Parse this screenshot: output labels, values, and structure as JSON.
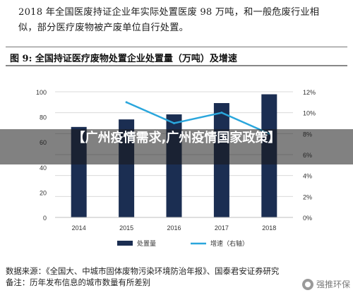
{
  "intro": {
    "line1": "2018 年全国医废持证企业年实际处置医废 98 万吨，和一般危废行业相",
    "line2": "似，部分医疗废物被产废单位自行处置。"
  },
  "figure": {
    "title": "图 9:  全国持证医疗废物处置企业处置量（万吨）及增速"
  },
  "overlay": {
    "text": "【广州疫情需求,广州疫情国家政策】"
  },
  "source": {
    "line1": "数据来源：《全国大、中城市固体废物污染环境防治年报》、国泰君安证券研究",
    "line2": "备注：历年发布信息的城市数量有所差别"
  },
  "watermark": {
    "text": "强推环保",
    "icon": "wechat-logo"
  },
  "colors": {
    "bar": "#1b2e52",
    "line": "#2aa6dc",
    "grid": "#d9d9d9",
    "overlay": "#333333"
  },
  "chart_data": {
    "type": "bar",
    "categories": [
      "2014",
      "2015",
      "2016",
      "2017",
      "2018"
    ],
    "series": [
      {
        "name": "处置量",
        "type": "bar",
        "axis": "left",
        "values": [
          72,
          78,
          82,
          91,
          98
        ]
      },
      {
        "name": "增速（右轴）",
        "type": "line",
        "axis": "right",
        "values": [
          null,
          0.11,
          0.09,
          0.1,
          0.08
        ]
      }
    ],
    "y_left": {
      "min": 0,
      "max": 100,
      "ticks": [
        0,
        20,
        40,
        60,
        80,
        100
      ],
      "tick_labels": [
        "0",
        "20",
        "40",
        "60",
        "80",
        "100"
      ]
    },
    "y_right": {
      "min": 0,
      "max": 0.12,
      "ticks": [
        0,
        0.02,
        0.04,
        0.06,
        0.08,
        0.1,
        0.12
      ],
      "tick_labels": [
        "0%",
        "2%",
        "4%",
        "6%",
        "8%",
        "10%",
        "12%"
      ]
    },
    "grid": true,
    "legend_position": "bottom"
  }
}
